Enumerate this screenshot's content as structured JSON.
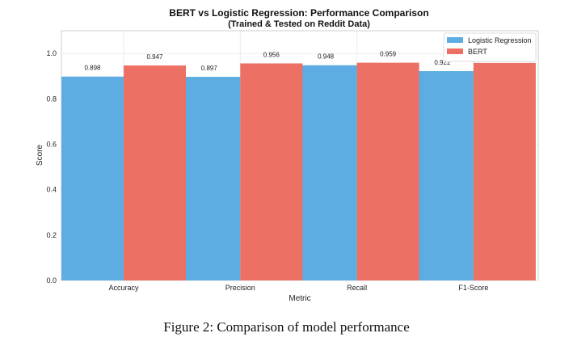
{
  "chart_data": {
    "type": "bar",
    "title": "BERT vs Logistic Regression: Performance Comparison",
    "subtitle": "(Trained & Tested on Reddit Data)",
    "xlabel": "Metric",
    "ylabel": "Score",
    "categories": [
      "Accuracy",
      "Precision",
      "Recall",
      "F1-Score"
    ],
    "series": [
      {
        "name": "Logistic Regression",
        "color": "#5dade2",
        "values": [
          0.898,
          0.897,
          0.948,
          0.922
        ]
      },
      {
        "name": "BERT",
        "color": "#ec7063",
        "values": [
          0.947,
          0.956,
          0.959,
          0.958
        ]
      }
    ],
    "ylim": [
      0,
      1.1
    ],
    "yticks": [
      "0.0",
      "0.2",
      "0.4",
      "0.6",
      "0.8",
      "1.0"
    ],
    "grid": true,
    "legend": "top-right"
  },
  "caption": "Figure 2: Comparison of model performance"
}
